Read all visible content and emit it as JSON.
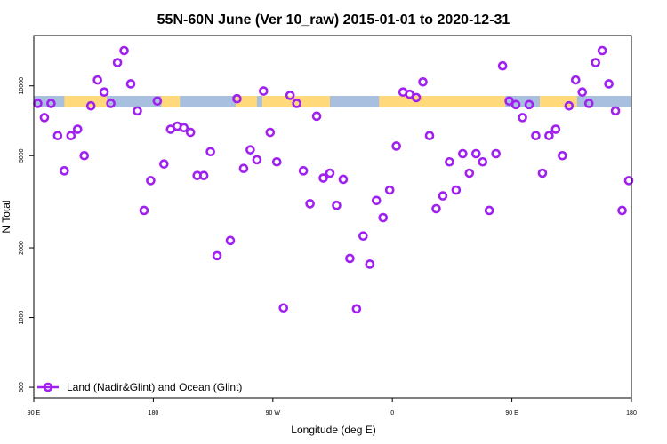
{
  "chart_data": {
    "type": "scatter",
    "title": "55N-60N June (Ver 10_raw)   2015-01-01 to 2020-12-31",
    "xlabel": "Longitude (deg E)",
    "ylabel": "N Total",
    "x_ticks": [
      {
        "value": 90,
        "label": "90 E"
      },
      {
        "value": 180,
        "label": "180"
      },
      {
        "value": 270,
        "label": "90 W"
      },
      {
        "value": 360,
        "label": "0"
      },
      {
        "value": 450,
        "label": "90 E"
      },
      {
        "value": 540,
        "label": "180"
      }
    ],
    "y_ticks": [
      500,
      1000,
      2000,
      5000,
      10000
    ],
    "xlim": [
      90,
      540
    ],
    "ylim": [
      450,
      16500
    ],
    "yscale": "log",
    "legend_label": "Land (Nadir&Glint) and Ocean (Glint)",
    "series_color": "#a020f0",
    "land_color": "#ffd97a",
    "ocean_color": "#a9bfdf",
    "band_y": [
      8100,
      9050
    ],
    "ocean_spans": [
      [
        90,
        113
      ],
      [
        145,
        186
      ],
      [
        200,
        242
      ],
      [
        258,
        262
      ],
      [
        313,
        350
      ],
      [
        445,
        471
      ],
      [
        499,
        540
      ]
    ],
    "points": [
      {
        "x": 93,
        "y": 8400
      },
      {
        "x": 98,
        "y": 7300
      },
      {
        "x": 103,
        "y": 8400
      },
      {
        "x": 108,
        "y": 6100
      },
      {
        "x": 113,
        "y": 4300
      },
      {
        "x": 118,
        "y": 6100
      },
      {
        "x": 123,
        "y": 6500
      },
      {
        "x": 128,
        "y": 5000
      },
      {
        "x": 133,
        "y": 8200
      },
      {
        "x": 138,
        "y": 10600
      },
      {
        "x": 143,
        "y": 9400
      },
      {
        "x": 148,
        "y": 8400
      },
      {
        "x": 153,
        "y": 12600
      },
      {
        "x": 158,
        "y": 14200
      },
      {
        "x": 163,
        "y": 10200
      },
      {
        "x": 168,
        "y": 7800
      },
      {
        "x": 173,
        "y": 2900
      },
      {
        "x": 178,
        "y": 3900
      },
      {
        "x": 183,
        "y": 8600
      },
      {
        "x": 188,
        "y": 4600
      },
      {
        "x": 193,
        "y": 6500
      },
      {
        "x": 198,
        "y": 6700
      },
      {
        "x": 203,
        "y": 6600
      },
      {
        "x": 208,
        "y": 6300
      },
      {
        "x": 213,
        "y": 4100
      },
      {
        "x": 218,
        "y": 4100
      },
      {
        "x": 223,
        "y": 5200
      },
      {
        "x": 228,
        "y": 1850
      },
      {
        "x": 238,
        "y": 2150
      },
      {
        "x": 243,
        "y": 8800
      },
      {
        "x": 248,
        "y": 4400
      },
      {
        "x": 253,
        "y": 5300
      },
      {
        "x": 258,
        "y": 4800
      },
      {
        "x": 263,
        "y": 9500
      },
      {
        "x": 268,
        "y": 6300
      },
      {
        "x": 273,
        "y": 4700
      },
      {
        "x": 278,
        "y": 1100
      },
      {
        "x": 283,
        "y": 9100
      },
      {
        "x": 288,
        "y": 8400
      },
      {
        "x": 293,
        "y": 4300
      },
      {
        "x": 298,
        "y": 3100
      },
      {
        "x": 303,
        "y": 7400
      },
      {
        "x": 308,
        "y": 4000
      },
      {
        "x": 313,
        "y": 4200
      },
      {
        "x": 318,
        "y": 3050
      },
      {
        "x": 323,
        "y": 3950
      },
      {
        "x": 328,
        "y": 1800
      },
      {
        "x": 333,
        "y": 1090
      },
      {
        "x": 338,
        "y": 2250
      },
      {
        "x": 343,
        "y": 1700
      },
      {
        "x": 348,
        "y": 3200
      },
      {
        "x": 353,
        "y": 2700
      },
      {
        "x": 358,
        "y": 3550
      },
      {
        "x": 363,
        "y": 5500
      },
      {
        "x": 368,
        "y": 9400
      },
      {
        "x": 373,
        "y": 9200
      },
      {
        "x": 378,
        "y": 8900
      },
      {
        "x": 383,
        "y": 10400
      },
      {
        "x": 388,
        "y": 6100
      },
      {
        "x": 393,
        "y": 2950
      },
      {
        "x": 398,
        "y": 3350
      },
      {
        "x": 403,
        "y": 4700
      },
      {
        "x": 408,
        "y": 3550
      },
      {
        "x": 413,
        "y": 5100
      },
      {
        "x": 418,
        "y": 4200
      },
      {
        "x": 423,
        "y": 5100
      },
      {
        "x": 428,
        "y": 4700
      },
      {
        "x": 433,
        "y": 2900
      },
      {
        "x": 438,
        "y": 5100
      },
      {
        "x": 443,
        "y": 12200
      },
      {
        "x": 448,
        "y": 8600
      },
      {
        "x": 453,
        "y": 8300
      },
      {
        "x": 458,
        "y": 7300
      },
      {
        "x": 463,
        "y": 8300
      },
      {
        "x": 468,
        "y": 6100
      },
      {
        "x": 473,
        "y": 4200
      },
      {
        "x": 478,
        "y": 6100
      },
      {
        "x": 483,
        "y": 6500
      },
      {
        "x": 488,
        "y": 5000
      },
      {
        "x": 493,
        "y": 8200
      },
      {
        "x": 498,
        "y": 10600
      },
      {
        "x": 503,
        "y": 9400
      },
      {
        "x": 508,
        "y": 8400
      },
      {
        "x": 513,
        "y": 12600
      },
      {
        "x": 518,
        "y": 14200
      },
      {
        "x": 523,
        "y": 10200
      },
      {
        "x": 528,
        "y": 7800
      },
      {
        "x": 533,
        "y": 2900
      },
      {
        "x": 538,
        "y": 3900
      }
    ]
  }
}
